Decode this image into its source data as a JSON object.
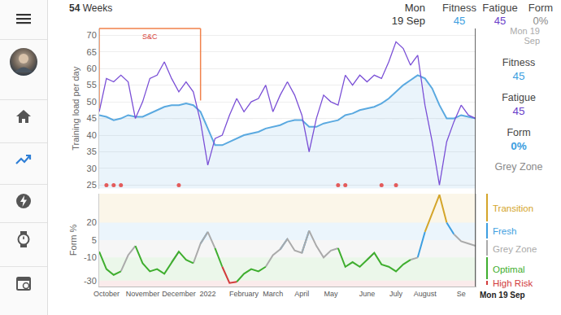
{
  "header": {
    "range_value": 54,
    "range_label": "Weeks",
    "date": "Mon 19 Sep",
    "metrics": [
      {
        "label": "Fitness",
        "value": 45,
        "color": "#3d9ee0"
      },
      {
        "label": "Fatigue",
        "value": 45,
        "color": "#6a3ec9"
      },
      {
        "label": "Form",
        "value": 0,
        "value_label": "0%",
        "color": "#8a8a8a"
      }
    ]
  },
  "side_panel": {
    "date": "Mon 19 Sep",
    "metrics": [
      {
        "label": "Fitness",
        "value": 45,
        "color": "#3d9ee0"
      },
      {
        "label": "Fatigue",
        "value": 45,
        "color": "#6a3ec9"
      },
      {
        "label": "Form",
        "value": 0,
        "value_label": "0%",
        "color": "#3d9ee0"
      }
    ],
    "zone": "Grey Zone"
  },
  "chart_data": [
    {
      "type": "line",
      "ylabel": "Training load per day",
      "tick_labels": "y",
      "grid": true,
      "categories": [
        null,
        "October",
        null,
        null,
        null,
        null,
        "November",
        null,
        null,
        null,
        null,
        "December",
        null,
        null,
        null,
        "2022",
        null,
        null,
        null,
        null,
        "February",
        null,
        null,
        null,
        "March",
        null,
        null,
        null,
        "April",
        null,
        null,
        null,
        "May",
        null,
        null,
        null,
        null,
        "June",
        null,
        null,
        null,
        "July",
        null,
        null,
        null,
        "August",
        null,
        null,
        null,
        null,
        "Se",
        null,
        null
      ],
      "series": [
        {
          "name": "Fitness",
          "type": "area",
          "color": "#5aa9e0",
          "values": [
            46,
            45.5,
            44.5,
            45,
            46,
            45.5,
            45.5,
            46.5,
            47.5,
            48.5,
            49,
            49,
            49.5,
            49,
            47,
            42,
            37,
            37,
            38,
            39,
            40,
            40.5,
            41,
            42,
            42.5,
            43,
            44,
            44.5,
            44.5,
            42.5,
            42.5,
            43.5,
            44,
            44.5,
            46,
            46.5,
            47.5,
            48,
            48.5,
            49.5,
            51,
            53,
            55,
            56.5,
            58,
            57,
            54,
            49,
            45,
            45,
            46,
            45.5,
            45
          ]
        },
        {
          "name": "Fatigue",
          "type": "line",
          "color": "#7a4fd6",
          "values": [
            47,
            57,
            56,
            58,
            56,
            45,
            50,
            57,
            58,
            62,
            57,
            53,
            56,
            53,
            44,
            31,
            39,
            40,
            46,
            51,
            47,
            50,
            51,
            55,
            47,
            52,
            56,
            52,
            46,
            35,
            45,
            52,
            50,
            49,
            58,
            55,
            58,
            56,
            58,
            57,
            62,
            68,
            66,
            61,
            64,
            49,
            38,
            25,
            38,
            44,
            49,
            46,
            45
          ]
        }
      ],
      "ylim": [
        24,
        72
      ],
      "yticks": [
        25,
        30,
        35,
        40,
        45,
        50,
        55,
        60,
        65,
        70
      ],
      "periods": [
        {
          "label": "S&C",
          "start": 0,
          "end": 14,
          "color": "#f0814a"
        }
      ],
      "events": {
        "positions": [
          1,
          2,
          3,
          11,
          33,
          34,
          39,
          41
        ],
        "value": 25,
        "color": "#e35b5b"
      }
    },
    {
      "type": "line",
      "ylabel": "Form %",
      "categories": [
        null,
        "October",
        null,
        null,
        null,
        null,
        "November",
        null,
        null,
        null,
        null,
        "December",
        null,
        null,
        null,
        "2022",
        null,
        null,
        null,
        null,
        "February",
        null,
        null,
        null,
        "March",
        null,
        null,
        null,
        "April",
        null,
        null,
        null,
        "May",
        null,
        null,
        null,
        null,
        "June",
        null,
        null,
        null,
        "July",
        null,
        null,
        null,
        "August",
        null,
        null,
        null,
        null,
        "Se",
        null,
        null
      ],
      "series": [
        {
          "name": "Form",
          "type": "line",
          "values": [
            -5,
            -20,
            -25,
            -22,
            -8,
            0,
            -15,
            -22,
            -20,
            -24,
            -14,
            -5,
            -12,
            -15,
            2,
            12,
            -2,
            -18,
            -32,
            -31,
            -24,
            -20,
            -22,
            -18,
            -8,
            -3,
            6,
            -4,
            -6,
            13,
            0,
            -10,
            -4,
            -2,
            -18,
            -14,
            -18,
            -12,
            -6,
            -16,
            -18,
            -22,
            -16,
            -12,
            -10,
            12,
            28,
            44,
            20,
            10,
            4,
            2,
            0
          ]
        }
      ],
      "ylim": [
        -35,
        45
      ],
      "yticks": [
        20,
        5,
        -10,
        -30
      ],
      "zones": [
        {
          "name": "Transition",
          "color": "#d4a52a",
          "min": 20,
          "max": null
        },
        {
          "name": "Fresh",
          "color": "#3d9ee0",
          "min": 5,
          "max": 20
        },
        {
          "name": "Grey Zone",
          "color": "#aaaaaa",
          "min": -10,
          "max": 5
        },
        {
          "name": "Optimal",
          "color": "#3fae2f",
          "min": -30,
          "max": -10
        },
        {
          "name": "High Risk",
          "color": "#d23b3b",
          "min": null,
          "max": -30
        }
      ],
      "annotations": [
        {
          "text": "Mon 19 Sep",
          "index": 52
        }
      ]
    }
  ]
}
